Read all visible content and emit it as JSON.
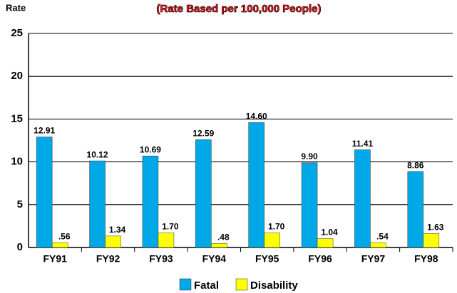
{
  "chart_data": {
    "type": "bar",
    "subtitle": "(Rate Based per 100,000 People)",
    "ylabel": "Rate",
    "categories": [
      "FY91",
      "FY92",
      "FY93",
      "FY94",
      "FY95",
      "FY96",
      "FY97",
      "FY98"
    ],
    "series": [
      {
        "name": "Fatal",
        "color": "#00a8e8",
        "values": [
          12.91,
          10.12,
          10.69,
          12.59,
          14.6,
          9.9,
          11.41,
          8.86
        ],
        "value_labels": [
          "12.91",
          "10.12",
          "10.69",
          "12.59",
          "14.60",
          "9.90",
          "11.41",
          "8.86"
        ]
      },
      {
        "name": "Disability",
        "color": "#ffff00",
        "values": [
          0.56,
          1.34,
          1.7,
          0.48,
          1.7,
          1.04,
          0.54,
          1.63
        ],
        "value_labels": [
          ".56",
          "1.34",
          "1.70",
          ".48",
          "1.70",
          "1.04",
          ".54",
          "1.63"
        ]
      }
    ],
    "ylim": [
      0,
      25
    ],
    "yticks": [
      0,
      5,
      10,
      15,
      20,
      25
    ],
    "grid": true,
    "legend": "bottom"
  }
}
